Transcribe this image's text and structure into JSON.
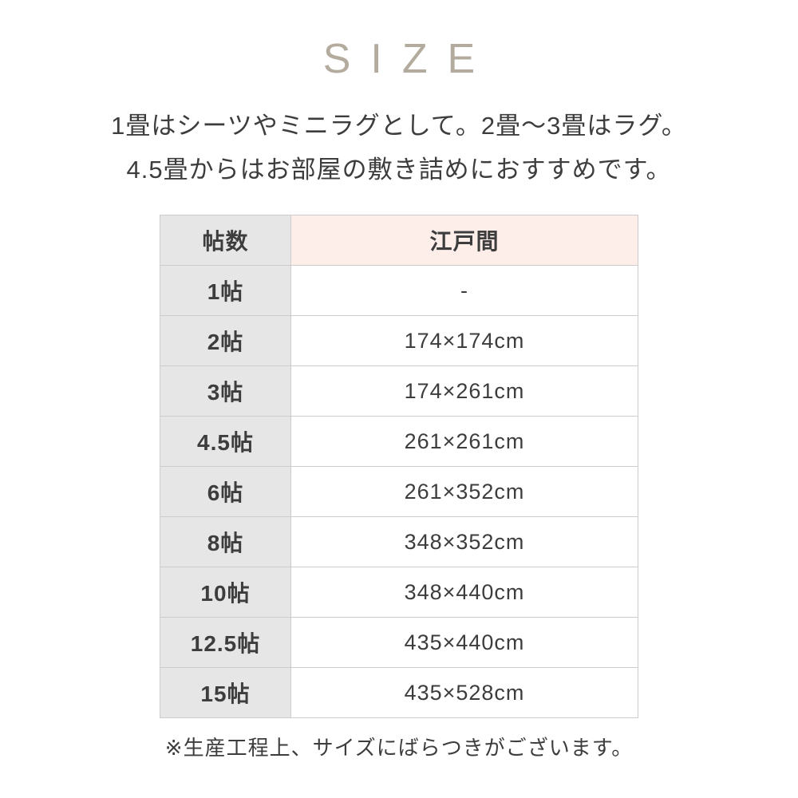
{
  "title": {
    "text": "SIZE"
  },
  "description": {
    "line1": "1畳はシーツやミニラグとして。2畳～3畳はラグ。",
    "line2": "4.5畳からはお部屋の敷き詰めにおすすめです。"
  },
  "table": {
    "headers": [
      "帖数",
      "江戸間"
    ],
    "rows": [
      {
        "label": "1帖",
        "value": "-"
      },
      {
        "label": "2帖",
        "value": "174×174cm"
      },
      {
        "label": "3帖",
        "value": "174×261cm"
      },
      {
        "label": "4.5帖",
        "value": "261×261cm"
      },
      {
        "label": "6帖",
        "value": "261×352cm"
      },
      {
        "label": "8帖",
        "value": "348×352cm"
      },
      {
        "label": "10帖",
        "value": "348×440cm"
      },
      {
        "label": "12.5帖",
        "value": "435×440cm"
      },
      {
        "label": "15帖",
        "value": "435×528cm"
      }
    ]
  },
  "footnote": {
    "text": "※生産工程上、サイズにばらつきがございます。"
  },
  "colors": {
    "title": "#b3ab9e",
    "text": "#3d3d3d",
    "label_bg": "#e6e6e6",
    "header_bg": "#fdeeea",
    "value_bg": "#ffffff",
    "border": "#cccccc",
    "outer_border": "#dcdcdc"
  }
}
